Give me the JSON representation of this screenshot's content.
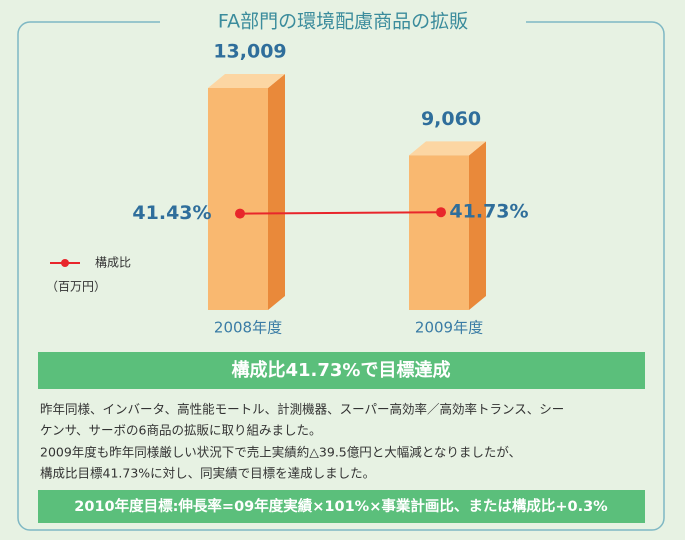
{
  "chart_data": {
    "type": "bar",
    "title": "FA部門の環境配慮商品の拡販",
    "categories": [
      "2008年度",
      "2009年度"
    ],
    "series": [
      {
        "values": [
          13009,
          9060
        ],
        "value_labels": [
          "13,009",
          "9,060"
        ],
        "color": "#f9b870"
      },
      {
        "name": "構成比",
        "type": "line",
        "values": [
          41.43,
          41.73
        ],
        "value_labels": [
          "41.43%",
          "41.73%"
        ],
        "color": "#e8262b"
      }
    ],
    "unit_label": "（百万円）"
  },
  "banner": "構成比41.73%で目標達成",
  "description": [
    "昨年同様、インバータ、高性能モートル、計測機器、スーパー高効率／高効率トランス、シー",
    "ケンサ、サーボの6商品の拡販に取り組みました。",
    "2009年度も昨年同様厳しい状況下で売上実績約△39.5億円と大幅減となりましたが、",
    "構成比目標41.73%に対し、同実績で目標を達成しました。"
  ],
  "goal": "2010年度目標:伸長率=09年度実績×101%×事業計画比、または構成比+0.3%"
}
